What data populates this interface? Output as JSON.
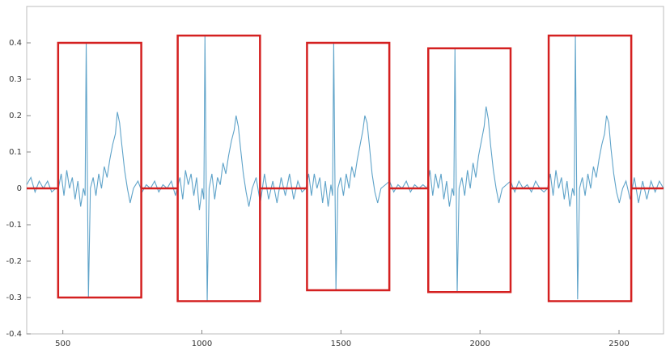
{
  "chart_data": {
    "type": "line",
    "xlim": [
      370,
      2660
    ],
    "ylim": [
      -0.4,
      0.5
    ],
    "xticks": [
      500,
      1000,
      1500,
      2000,
      2500
    ],
    "yticks": [
      -0.4,
      -0.3,
      -0.2,
      -0.1,
      0,
      0.1,
      0.2,
      0.3,
      0.4
    ],
    "series": [
      {
        "color": "#5fa3c9",
        "x": [
          370,
          385,
          400,
          415,
          430,
          445,
          460,
          475,
          484,
          494,
          504,
          514,
          524,
          534,
          544,
          554,
          564,
          574,
          580,
          584,
          592,
          599,
          609,
          619,
          629,
          639,
          649,
          659,
          669,
          679,
          689,
          696,
          704,
          712,
          722,
          732,
          742,
          754,
          770,
          785,
          800,
          815,
          830,
          845,
          860,
          875,
          890,
          905,
          911,
          921,
          931,
          941,
          951,
          961,
          971,
          981,
          991,
          1001,
          1007,
          1011,
          1019,
          1026,
          1036,
          1046,
          1056,
          1066,
          1076,
          1086,
          1096,
          1106,
          1116,
          1123,
          1131,
          1139,
          1149,
          1159,
          1169,
          1181,
          1195,
          1210,
          1225,
          1240,
          1255,
          1270,
          1285,
          1300,
          1315,
          1330,
          1345,
          1360,
          1374,
          1384,
          1394,
          1404,
          1414,
          1424,
          1434,
          1444,
          1454,
          1464,
          1470,
          1474,
          1482,
          1489,
          1499,
          1509,
          1519,
          1529,
          1539,
          1549,
          1559,
          1569,
          1579,
          1586,
          1594,
          1602,
          1612,
          1622,
          1632,
          1644,
          1660,
          1675,
          1690,
          1705,
          1720,
          1735,
          1750,
          1765,
          1780,
          1795,
          1810,
          1820,
          1830,
          1840,
          1850,
          1860,
          1870,
          1880,
          1890,
          1900,
          1906,
          1910,
          1918,
          1925,
          1935,
          1945,
          1955,
          1965,
          1975,
          1985,
          1995,
          2005,
          2015,
          2022,
          2030,
          2038,
          2048,
          2058,
          2068,
          2080,
          2095,
          2110,
          2125,
          2140,
          2155,
          2170,
          2185,
          2200,
          2215,
          2230,
          2243,
          2253,
          2263,
          2273,
          2283,
          2293,
          2303,
          2313,
          2323,
          2333,
          2339,
          2343,
          2351,
          2358,
          2368,
          2378,
          2388,
          2398,
          2408,
          2418,
          2428,
          2438,
          2448,
          2455,
          2463,
          2471,
          2481,
          2491,
          2501,
          2513,
          2525,
          2540,
          2555,
          2570,
          2585,
          2600,
          2615,
          2630,
          2645,
          2660
        ],
        "values": [
          0.01,
          0.03,
          -0.01,
          0.02,
          0.0,
          0.02,
          -0.01,
          0.0,
          0.0,
          0.04,
          -0.02,
          0.05,
          0.0,
          0.03,
          -0.03,
          0.02,
          -0.05,
          0.0,
          -0.02,
          0.4,
          -0.3,
          0.0,
          0.03,
          -0.02,
          0.04,
          0.0,
          0.06,
          0.03,
          0.08,
          0.12,
          0.15,
          0.21,
          0.18,
          0.12,
          0.05,
          0.0,
          -0.04,
          0.0,
          0.02,
          -0.01,
          0.01,
          0.0,
          0.02,
          -0.01,
          0.01,
          0.0,
          0.02,
          -0.02,
          0.0,
          0.03,
          -0.03,
          0.05,
          0.01,
          0.04,
          -0.02,
          0.03,
          -0.06,
          0.0,
          -0.03,
          0.42,
          -0.31,
          0.0,
          0.04,
          -0.03,
          0.03,
          0.01,
          0.07,
          0.04,
          0.09,
          0.13,
          0.16,
          0.2,
          0.17,
          0.11,
          0.04,
          -0.01,
          -0.05,
          0.0,
          0.03,
          -0.04,
          0.04,
          -0.03,
          0.02,
          -0.04,
          0.03,
          -0.02,
          0.04,
          -0.03,
          0.02,
          -0.01,
          0.0,
          0.04,
          -0.02,
          0.04,
          0.0,
          0.03,
          -0.04,
          0.02,
          -0.05,
          0.01,
          -0.02,
          0.4,
          -0.28,
          0.0,
          0.03,
          -0.02,
          0.04,
          0.0,
          0.06,
          0.03,
          0.08,
          0.12,
          0.16,
          0.2,
          0.18,
          0.12,
          0.04,
          -0.01,
          -0.04,
          0.0,
          0.01,
          0.02,
          -0.01,
          0.01,
          0.0,
          0.02,
          -0.01,
          0.01,
          0.0,
          0.01,
          0.0,
          0.05,
          -0.02,
          0.04,
          0.0,
          0.04,
          -0.03,
          0.02,
          -0.05,
          0.0,
          -0.02,
          0.385,
          -0.285,
          0.0,
          0.03,
          -0.02,
          0.05,
          0.0,
          0.07,
          0.03,
          0.09,
          0.13,
          0.17,
          0.225,
          0.19,
          0.12,
          0.05,
          0.0,
          -0.04,
          0.0,
          0.01,
          0.02,
          -0.01,
          0.02,
          0.0,
          0.01,
          -0.01,
          0.02,
          0.0,
          -0.01,
          0.0,
          0.04,
          -0.02,
          0.05,
          0.0,
          0.03,
          -0.03,
          0.02,
          -0.05,
          0.0,
          -0.02,
          0.42,
          -0.305,
          0.0,
          0.03,
          -0.02,
          0.04,
          0.0,
          0.06,
          0.03,
          0.08,
          0.12,
          0.15,
          0.2,
          0.18,
          0.11,
          0.04,
          -0.01,
          -0.04,
          0.0,
          0.02,
          -0.03,
          0.03,
          -0.04,
          0.02,
          -0.03,
          0.02,
          -0.01,
          0.02,
          0.0
        ]
      }
    ],
    "box_color": "#d42020",
    "baseline": 0,
    "boxes": [
      {
        "x": [
          483,
          782
        ],
        "y": [
          -0.3,
          0.4
        ]
      },
      {
        "x": [
          913,
          1209
        ],
        "y": [
          -0.31,
          0.42
        ]
      },
      {
        "x": [
          1378,
          1674
        ],
        "y": [
          -0.28,
          0.4
        ]
      },
      {
        "x": [
          1814,
          2110
        ],
        "y": [
          -0.285,
          0.385
        ]
      },
      {
        "x": [
          2247,
          2544
        ],
        "y": [
          -0.31,
          0.42
        ]
      }
    ]
  }
}
